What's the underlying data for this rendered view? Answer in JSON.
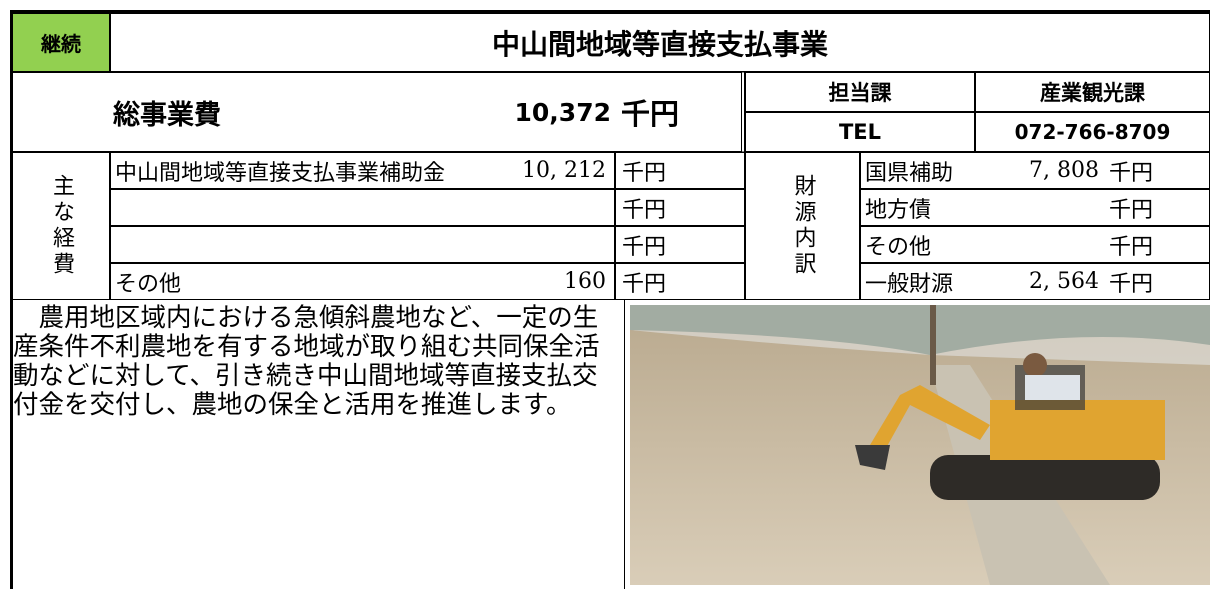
{
  "header": {
    "status": "継続",
    "title": "中山間地域等直接支払事業"
  },
  "total": {
    "label": "総事業費",
    "amount": "10,372",
    "unit": "千円"
  },
  "contact": {
    "dept_label": "担当課",
    "dept": "産業観光課",
    "tel_label": "TEL",
    "tel": "072-766-8709"
  },
  "expenses": {
    "label": "主な経費",
    "rows": [
      {
        "name": "中山間地域等直接支払事業補助金",
        "amount": "10, 212",
        "unit": "千円"
      },
      {
        "unit": "千円"
      },
      {
        "unit": "千円"
      },
      {
        "name": "その他",
        "amount": "160",
        "unit": "千円"
      }
    ]
  },
  "funding": {
    "label": "財源内訳",
    "rows": [
      {
        "name": "国県補助",
        "amount": "7, 808",
        "unit": "千円"
      },
      {
        "name": "地方債",
        "unit": "千円"
      },
      {
        "name": "その他",
        "unit": "千円"
      },
      {
        "name": "一般財源",
        "amount": "2, 564",
        "unit": "千円"
      }
    ]
  },
  "description": "農用地区域内における急傾斜農地など、一定の生産条件不利農地を有する地域が取り組む共同保全活動などに対して、引き続き中山間地域等直接支払交付金を交付し、農地の保全と活用を推進します。"
}
